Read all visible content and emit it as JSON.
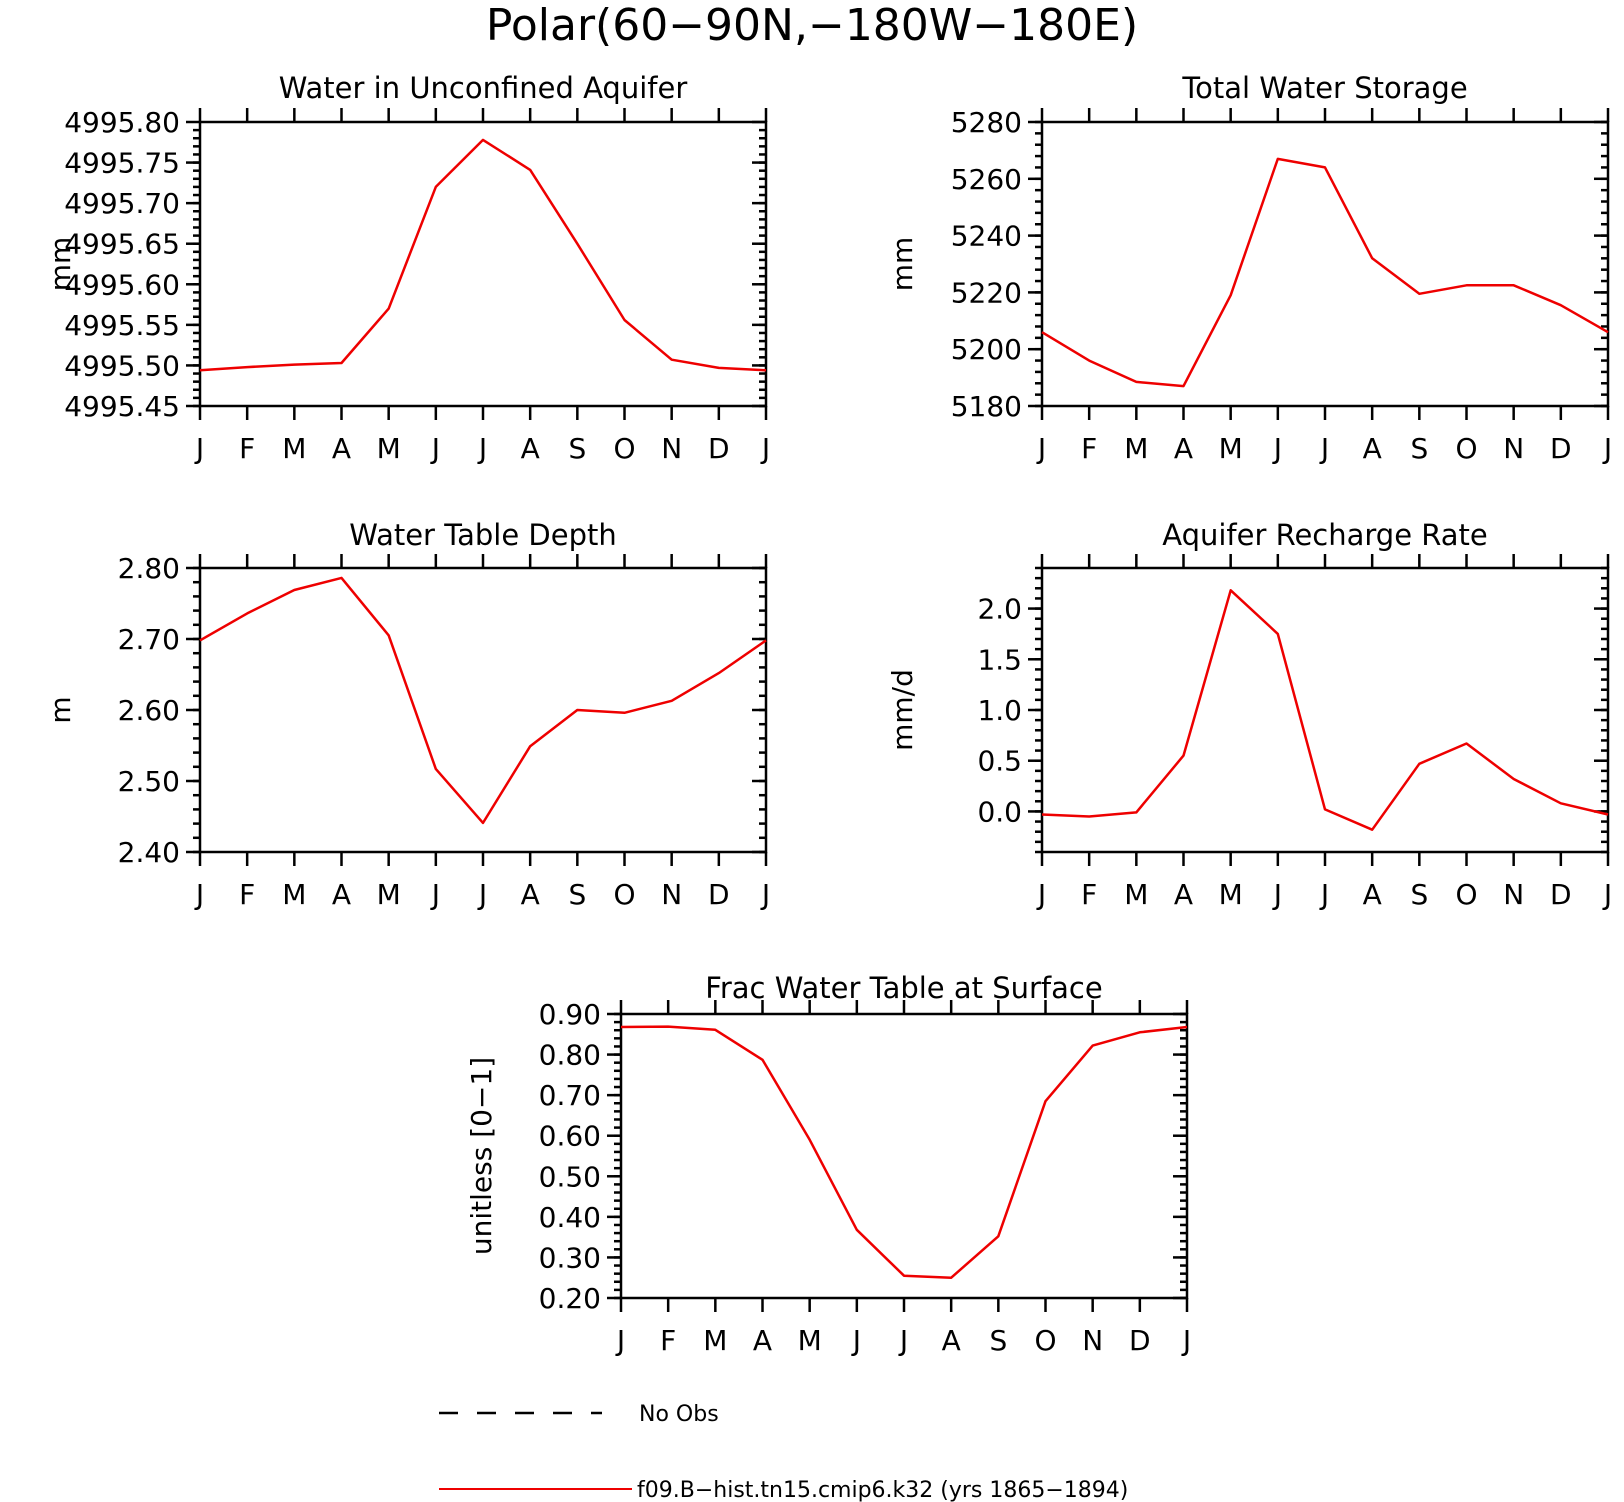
{
  "figure": {
    "title": "Polar(60−90N,−180W−180E)",
    "colors": {
      "model": "#ee0000",
      "obs": "#000000"
    }
  },
  "legend": {
    "obs_label": "No Obs",
    "model_label": "f09.B−hist.tn15.cmip6.k32 (yrs 1865−1894)"
  },
  "chart_data": [
    {
      "type": "line",
      "title": "Water in Unconfined Aquifer",
      "ylabel": "mm",
      "categories": [
        "J",
        "F",
        "M",
        "A",
        "M",
        "J",
        "J",
        "A",
        "S",
        "O",
        "N",
        "D",
        "J"
      ],
      "ylim": [
        4995.45,
        4995.8
      ],
      "yticks": [
        4995.45,
        4995.5,
        4995.55,
        4995.6,
        4995.65,
        4995.7,
        4995.75,
        4995.8
      ],
      "ytick_labels": [
        "4995.45",
        "4995.50",
        "4995.55",
        "4995.60",
        "4995.65",
        "4995.70",
        "4995.75",
        "4995.80"
      ],
      "series": [
        {
          "values": [
            4995.494,
            4995.498,
            4995.501,
            4995.503,
            4995.57,
            4995.72,
            4995.778,
            4995.741,
            4995.65,
            4995.556,
            4995.507,
            4995.497,
            4995.494
          ]
        }
      ]
    },
    {
      "type": "line",
      "title": "Total Water Storage",
      "ylabel": "mm",
      "categories": [
        "J",
        "F",
        "M",
        "A",
        "M",
        "J",
        "J",
        "A",
        "S",
        "O",
        "N",
        "D",
        "J"
      ],
      "ylim": [
        5180,
        5280
      ],
      "yticks": [
        5180,
        5200,
        5220,
        5240,
        5260,
        5280
      ],
      "ytick_labels": [
        "5180",
        "5200",
        "5220",
        "5240",
        "5260",
        "5280"
      ],
      "series": [
        {
          "values": [
            5206,
            5196,
            5188.5,
            5187,
            5219,
            5267,
            5264,
            5232,
            5219.5,
            5222.5,
            5222.5,
            5215.5,
            5206
          ]
        }
      ]
    },
    {
      "type": "line",
      "title": "Water Table Depth",
      "ylabel": "m",
      "categories": [
        "J",
        "F",
        "M",
        "A",
        "M",
        "J",
        "J",
        "A",
        "S",
        "O",
        "N",
        "D",
        "J"
      ],
      "ylim": [
        2.4,
        2.8
      ],
      "yticks": [
        2.4,
        2.5,
        2.6,
        2.7,
        2.8
      ],
      "ytick_labels": [
        "2.40",
        "2.50",
        "2.60",
        "2.70",
        "2.80"
      ],
      "series": [
        {
          "values": [
            2.698,
            2.736,
            2.769,
            2.786,
            2.705,
            2.517,
            2.441,
            2.549,
            2.6,
            2.596,
            2.613,
            2.652,
            2.698
          ]
        }
      ]
    },
    {
      "type": "line",
      "title": "Aquifer Recharge Rate",
      "ylabel": "mm/d",
      "categories": [
        "J",
        "F",
        "M",
        "A",
        "M",
        "J",
        "J",
        "A",
        "S",
        "O",
        "N",
        "D",
        "J"
      ],
      "ylim": [
        -0.4,
        2.4
      ],
      "yticks": [
        0.0,
        0.5,
        1.0,
        1.5,
        2.0
      ],
      "ytick_labels": [
        "0.0",
        "0.5",
        "1.0",
        "1.5",
        "2.0"
      ],
      "series": [
        {
          "values": [
            -0.03,
            -0.05,
            -0.01,
            0.55,
            2.18,
            1.75,
            0.02,
            -0.18,
            0.47,
            0.67,
            0.32,
            0.08,
            -0.03
          ]
        }
      ]
    },
    {
      "type": "line",
      "title": "Frac Water Table at Surface",
      "ylabel": "unitless [0−1]",
      "categories": [
        "J",
        "F",
        "M",
        "A",
        "M",
        "J",
        "J",
        "A",
        "S",
        "O",
        "N",
        "D",
        "J"
      ],
      "ylim": [
        0.2,
        0.9
      ],
      "yticks": [
        0.2,
        0.3,
        0.4,
        0.5,
        0.6,
        0.7,
        0.8,
        0.9
      ],
      "ytick_labels": [
        "0.20",
        "0.30",
        "0.40",
        "0.50",
        "0.60",
        "0.70",
        "0.80",
        "0.90"
      ],
      "series": [
        {
          "values": [
            0.868,
            0.869,
            0.861,
            0.787,
            0.59,
            0.368,
            0.255,
            0.25,
            0.352,
            0.685,
            0.822,
            0.855,
            0.868
          ]
        }
      ]
    }
  ]
}
